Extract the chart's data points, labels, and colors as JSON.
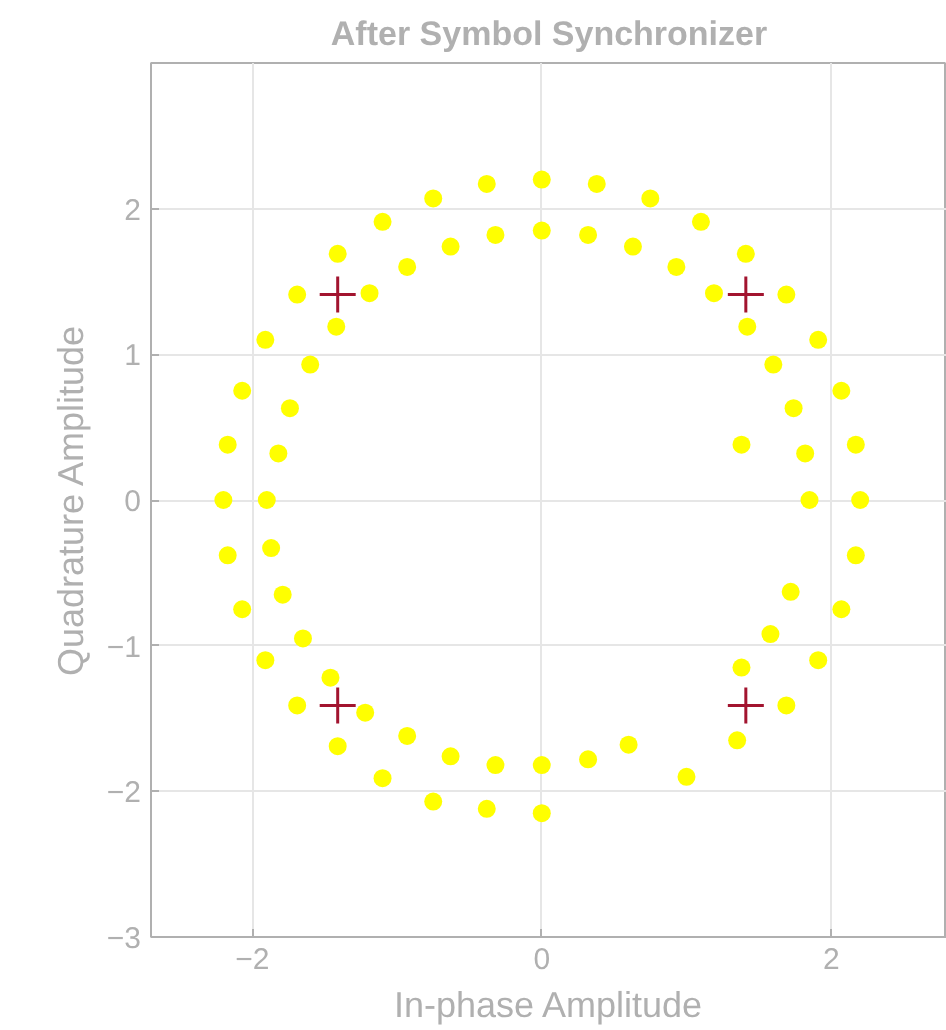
{
  "chart_data": {
    "type": "scatter",
    "title": "After Symbol Synchronizer",
    "xlabel": "In-phase Amplitude",
    "ylabel": "Quadrature Amplitude",
    "xlim": [
      -2.7,
      2.8
    ],
    "ylim": [
      -3,
      3
    ],
    "xticks": [
      -2,
      0,
      2
    ],
    "yticks": [
      -3,
      -2,
      -1,
      0,
      1,
      2
    ],
    "grid": true,
    "series": [
      {
        "color": "#ffff00",
        "marker": "circle",
        "x": [
          2.2,
          2.17,
          2.07,
          1.91,
          1.69,
          1.41,
          1.1,
          0.75,
          0.38,
          0,
          -0.38,
          -0.75,
          -1.1,
          -1.41,
          -1.69,
          -1.91,
          -2.07,
          -2.17,
          -2.2,
          -2.17,
          -2.07,
          -1.91,
          -1.69,
          -1.41,
          -1.1,
          -0.75,
          -0.38,
          0,
          2.17,
          2.07,
          1.91,
          1.69,
          1.35,
          1.0,
          1.85,
          1.82,
          1.74,
          1.6,
          1.42,
          1.19,
          0.93,
          0.63,
          0.32,
          0,
          -0.32,
          -0.63,
          -0.93,
          -1.19,
          -1.42,
          -1.6,
          -1.74,
          -1.82,
          -1.9,
          -1.87,
          -1.79,
          -1.65,
          -1.46,
          -1.22,
          -0.93,
          -0.63,
          -0.32,
          0,
          0.32,
          0.6,
          1.72,
          1.58,
          1.38,
          1.38
        ],
        "values": [
          0,
          0.38,
          0.75,
          1.1,
          1.41,
          1.69,
          1.91,
          2.07,
          2.17,
          2.2,
          2.17,
          2.07,
          1.91,
          1.69,
          1.41,
          1.1,
          0.75,
          0.38,
          0,
          -0.38,
          -0.75,
          -1.1,
          -1.41,
          -1.69,
          -1.91,
          -2.07,
          -2.12,
          -2.15,
          -0.38,
          -0.75,
          -1.1,
          -1.41,
          -1.65,
          -1.9,
          0,
          0.32,
          0.63,
          0.93,
          1.19,
          1.42,
          1.6,
          1.74,
          1.82,
          1.85,
          1.82,
          1.74,
          1.6,
          1.42,
          1.19,
          0.93,
          0.63,
          0.32,
          0,
          -0.33,
          -0.65,
          -0.95,
          -1.22,
          -1.46,
          -1.62,
          -1.76,
          -1.82,
          -1.82,
          -1.78,
          -1.68,
          -0.63,
          -0.92,
          -1.15,
          0.38
        ]
      },
      {
        "color": "#a2142f",
        "marker": "cross",
        "x": [
          -1.41,
          1.41,
          -1.41,
          1.41
        ],
        "values": [
          1.41,
          1.41,
          -1.41,
          -1.41
        ]
      }
    ]
  }
}
